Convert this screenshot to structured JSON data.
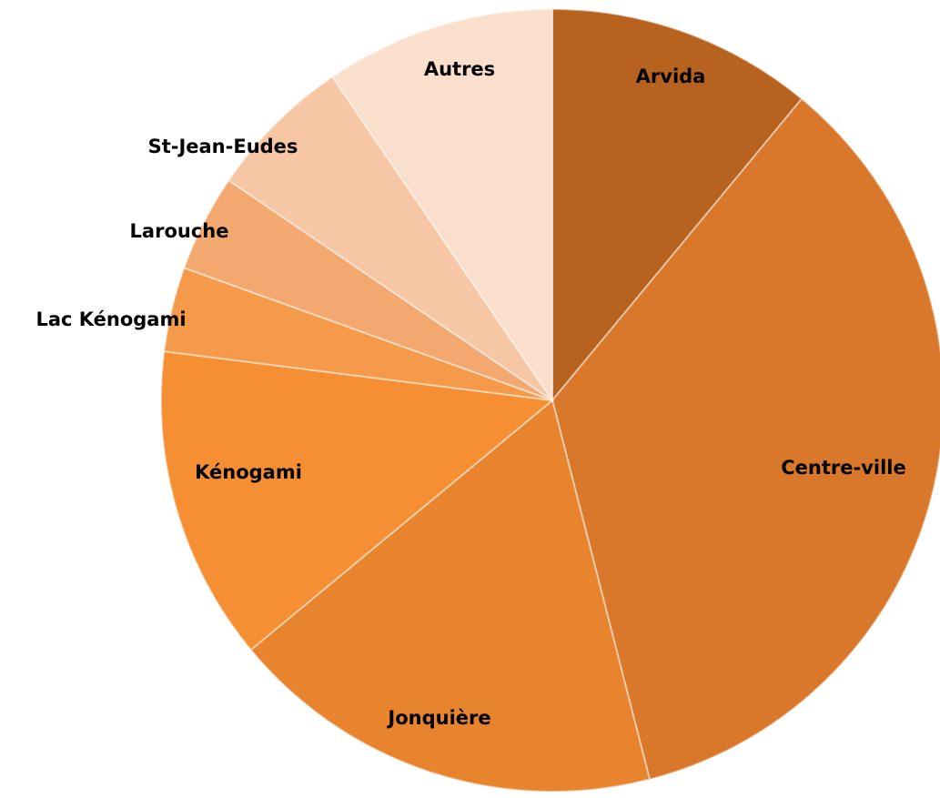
{
  "chart_data": {
    "type": "pie",
    "categories": [
      "Arvida",
      "Centre-ville",
      "Jonquière",
      "Kénogami",
      "Lac Kénogami",
      "Larouche",
      "St-Jean-Eudes",
      "Autres"
    ],
    "values": [
      11,
      35,
      18,
      13,
      3.5,
      4,
      6,
      9.5
    ],
    "colors": [
      "#b8621f",
      "#d9772a",
      "#e8832e",
      "#f68f33",
      "#f49a4a",
      "#f3a870",
      "#f7c6a4",
      "#fbdfcd"
    ]
  }
}
